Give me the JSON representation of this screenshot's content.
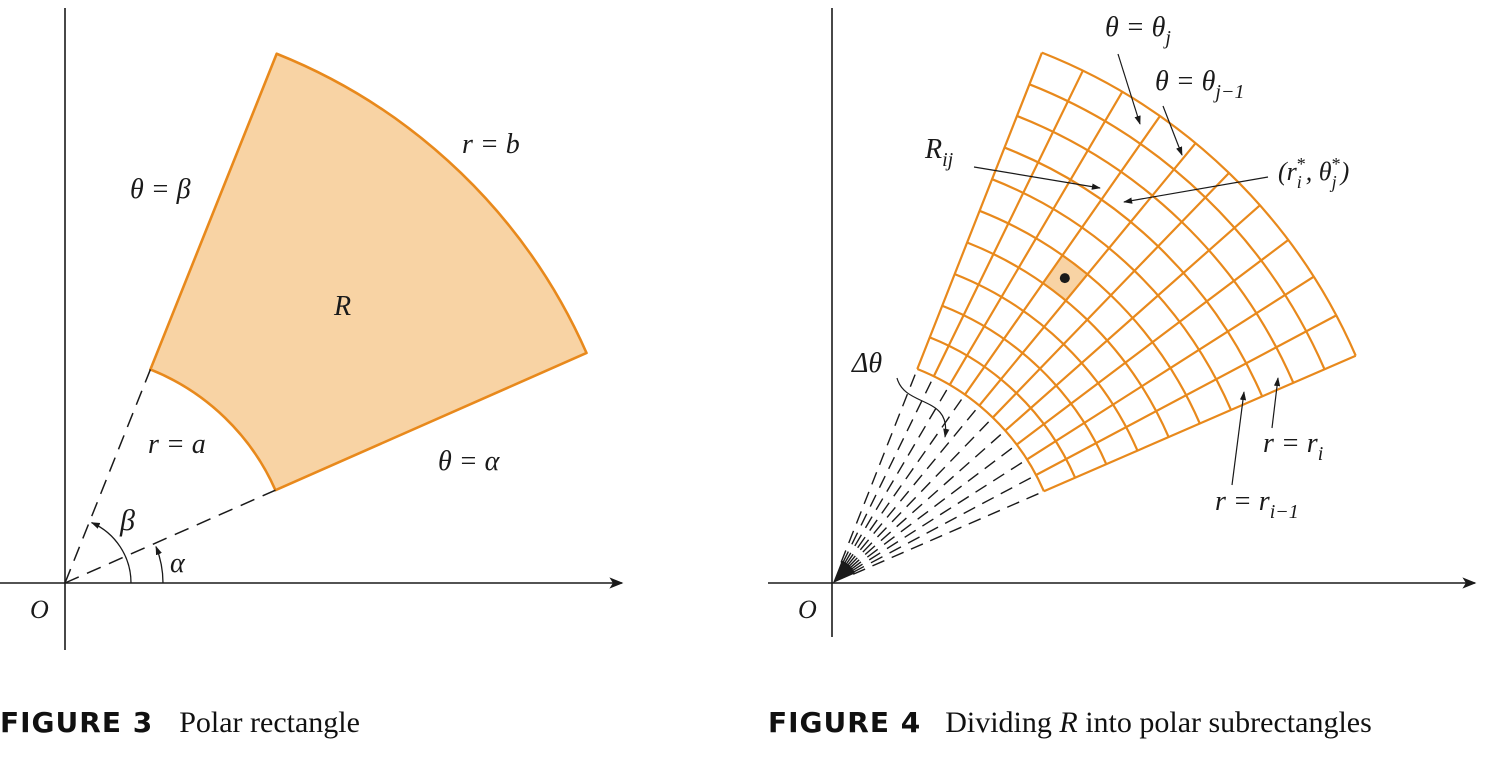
{
  "colors": {
    "orange": "#E8891C",
    "fill": "#F8D3A4",
    "ink": "#1a1a1a"
  },
  "figure3": {
    "origin_label": "O",
    "region_label": "R",
    "label_r_b": "r = b",
    "label_r_a": "r = a",
    "label_theta_beta": "θ = β",
    "label_theta_alpha": "θ = α",
    "angle_beta": "β",
    "angle_alpha": "α",
    "caption_label": "FIGURE 3",
    "caption_text": "Polar rectangle"
  },
  "figure4": {
    "origin_label": "O",
    "label_theta_j_lhs": "θ = θ",
    "label_theta_j_sub": "j",
    "label_theta_j1_lhs": "θ = θ",
    "label_theta_j1_sub": "j−1",
    "label_Rij_main": "R",
    "label_Rij_sub": "ij",
    "label_point_open": "(r",
    "label_point_sub_i": "i",
    "label_point_sup_star1": "*",
    "label_point_mid": ", θ",
    "label_point_sub_j": "j",
    "label_point_sup_star2": "*",
    "label_point_close": ")",
    "label_delta_theta": "Δθ",
    "label_r_ri_lhs": "r = r",
    "label_r_ri_sub": "i",
    "label_r_ri1_lhs": "r = r",
    "label_r_ri1_sub": "i−1",
    "caption_label": "FIGURE 4",
    "caption_text_1": "Dividing ",
    "caption_text_R": "R",
    "caption_text_2": " into polar subrectangles"
  }
}
